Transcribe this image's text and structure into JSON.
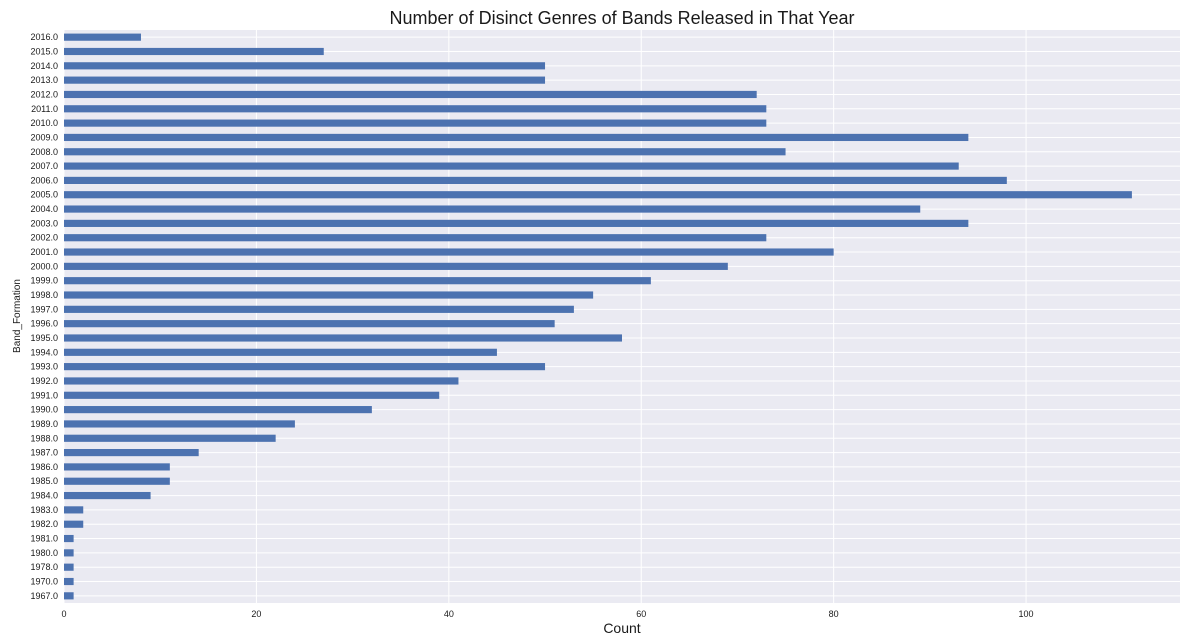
{
  "chart_data": {
    "type": "bar",
    "orientation": "horizontal",
    "title": "Number of Disinct Genres of Bands Released in That Year",
    "xlabel": "Count",
    "ylabel": "Band_Formation",
    "xlim": [
      0,
      116
    ],
    "x_ticks": [
      0,
      20,
      40,
      60,
      80,
      100
    ],
    "grid": true,
    "bar_color": "#4c72b0",
    "background_color": "#eaeaf2",
    "categories": [
      "1967.0",
      "1970.0",
      "1978.0",
      "1980.0",
      "1981.0",
      "1982.0",
      "1983.0",
      "1984.0",
      "1985.0",
      "1986.0",
      "1987.0",
      "1988.0",
      "1989.0",
      "1990.0",
      "1991.0",
      "1992.0",
      "1993.0",
      "1994.0",
      "1995.0",
      "1996.0",
      "1997.0",
      "1998.0",
      "1999.0",
      "2000.0",
      "2001.0",
      "2002.0",
      "2003.0",
      "2004.0",
      "2005.0",
      "2006.0",
      "2007.0",
      "2008.0",
      "2009.0",
      "2010.0",
      "2011.0",
      "2012.0",
      "2013.0",
      "2014.0",
      "2015.0",
      "2016.0"
    ],
    "values": [
      1,
      1,
      1,
      1,
      1,
      2,
      2,
      9,
      11,
      11,
      14,
      22,
      24,
      32,
      39,
      41,
      50,
      45,
      58,
      51,
      53,
      55,
      61,
      69,
      80,
      73,
      94,
      89,
      111,
      98,
      93,
      75,
      94,
      73,
      73,
      72,
      50,
      50,
      27,
      8
    ]
  }
}
